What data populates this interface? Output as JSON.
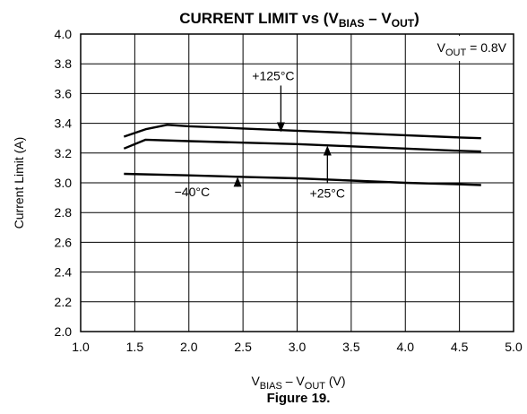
{
  "chart_data": {
    "type": "line",
    "title": {
      "prefix": "CURRENT LIMIT vs (V",
      "sub1": "BIAS",
      "middle": " – V",
      "sub2": "OUT",
      "suffix": ")"
    },
    "ylabel": "Current Limit (A)",
    "xlabel": {
      "v1": "V",
      "sub1": "BIAS",
      "middle": " – V",
      "sub2": "OUT",
      "suffix": " (V)"
    },
    "xlim": [
      1.0,
      5.0
    ],
    "ylim": [
      2.0,
      4.0
    ],
    "x_ticks": [
      1.0,
      1.5,
      2.0,
      2.5,
      3.0,
      3.5,
      4.0,
      4.5,
      5.0
    ],
    "x_tick_labels": [
      "1.0",
      "1.5",
      "2.0",
      "2.5",
      "3.0",
      "3.5",
      "4.0",
      "4.5",
      "5.0"
    ],
    "y_ticks": [
      2.0,
      2.2,
      2.4,
      2.6,
      2.8,
      3.0,
      3.2,
      3.4,
      3.6,
      3.8,
      4.0
    ],
    "y_tick_labels": [
      "2.0",
      "2.2",
      "2.4",
      "2.6",
      "2.8",
      "3.0",
      "3.2",
      "3.4",
      "3.6",
      "3.8",
      "4.0"
    ],
    "grid": true,
    "condition": {
      "v": "V",
      "sub": "OUT",
      "rest": " = 0.8V"
    },
    "series": [
      {
        "name": "+125°C",
        "x": [
          1.4,
          1.6,
          1.8,
          2.0,
          2.5,
          3.0,
          3.5,
          4.0,
          4.5,
          4.7
        ],
        "y": [
          3.31,
          3.36,
          3.39,
          3.38,
          3.365,
          3.35,
          3.335,
          3.32,
          3.305,
          3.3
        ]
      },
      {
        "name": "+25°C",
        "x": [
          1.4,
          1.6,
          2.0,
          2.5,
          3.0,
          3.5,
          4.0,
          4.5,
          4.7
        ],
        "y": [
          3.23,
          3.29,
          3.28,
          3.27,
          3.26,
          3.245,
          3.23,
          3.215,
          3.21
        ]
      },
      {
        "name": "−40°C",
        "x": [
          1.4,
          2.0,
          2.5,
          3.0,
          3.5,
          4.0,
          4.5,
          4.7
        ],
        "y": [
          3.06,
          3.05,
          3.04,
          3.03,
          3.015,
          3.0,
          2.99,
          2.985
        ]
      }
    ],
    "annotations": [
      {
        "series": "+125°C",
        "label": "+125°C",
        "label_x": 2.78,
        "label_y": 3.69,
        "arrow_to_x": 2.85,
        "arrow_to_y": 3.34
      },
      {
        "series": "+25°C",
        "label": "+25°C",
        "label_x": 3.28,
        "label_y": 2.9,
        "arrow_to_x": 3.28,
        "arrow_to_y": 3.25
      },
      {
        "series": "−40°C",
        "label": "−40°C",
        "label_x": 2.03,
        "label_y": 2.91,
        "arrow_to_x": 2.45,
        "arrow_to_y": 3.04
      }
    ],
    "caption": "Figure 19."
  }
}
